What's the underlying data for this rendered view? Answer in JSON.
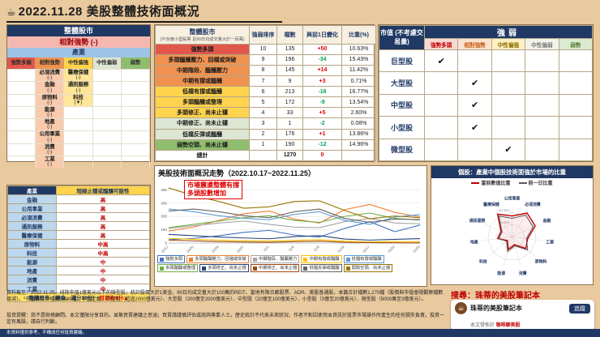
{
  "header": {
    "icon": "☕",
    "title": "2022.11.28 美股整體技術面概況"
  },
  "strength_levels": [
    {
      "label": "強勢多頭",
      "solid": "#e2574c",
      "light": "#f6b8af",
      "text": "#c00000",
      "pale": "#f8d9d4"
    },
    {
      "label": "相對強勢",
      "solid": "#f0924f",
      "light": "#f8cbad",
      "text": "#c55a11",
      "pale": "#fbe3d1"
    },
    {
      "label": "中性偏強",
      "solid": "#ffd34d",
      "light": "#ffe699",
      "text": "#8a6d00",
      "pale": "#fff0c2"
    },
    {
      "label": "中性偏弱",
      "solid": "#dde6d2",
      "light": "#e9efe0",
      "text": "#7a7a7a",
      "pale": "#f0f3ea"
    },
    {
      "label": "弱勢",
      "solid": "#8fbe6e",
      "light": "#c5deb0",
      "text": "#538135",
      "pale": "#dcead0"
    }
  ],
  "overall_panel": {
    "title": "整體股市",
    "status": "相對強勢 (-)",
    "industry_label": "產業",
    "grid_rows": 8,
    "placements": [
      {
        "name": "必須消費",
        "change": "(-)",
        "row": 0,
        "col": 1
      },
      {
        "name": "醫療保健",
        "change": "(-)",
        "row": 0,
        "col": 2
      },
      {
        "name": "金融",
        "change": "(-)",
        "row": 1,
        "col": 1
      },
      {
        "name": "通訊服務",
        "change": "(-)",
        "row": 1,
        "col": 2
      },
      {
        "name": "原物料",
        "change": "(-)",
        "row": 2,
        "col": 1
      },
      {
        "name": "科技",
        "change": "(▼)",
        "row": 2,
        "col": 2
      },
      {
        "name": "能源",
        "change": "(-)",
        "row": 3,
        "col": 1
      },
      {
        "name": "地產",
        "change": "(-)",
        "row": 4,
        "col": 1
      },
      {
        "name": "公用事業",
        "change": "(-)",
        "row": 5,
        "col": 1
      },
      {
        "name": "消費",
        "change": "(-)",
        "row": 6,
        "col": 1
      },
      {
        "name": "工業",
        "change": "(-)",
        "row": 7,
        "col": 1
      }
    ]
  },
  "summary_table": {
    "title": "整體股市",
    "subtitle": "(不含微小型股票 且90日均成交量大於一百萬)",
    "columns": [
      "強弱排序",
      "檔數",
      "與前1日變化",
      "比重(%)"
    ],
    "rows": [
      {
        "label": "強勢多頭",
        "rank": "10",
        "count": "135",
        "change": "+50",
        "weight": "10.63%",
        "tier": 0
      },
      {
        "label": "多頭醞釀壓力、回檔或突破",
        "rank": "9",
        "count": "196",
        "change": "-34",
        "weight": "15.43%",
        "tier": 1
      },
      {
        "label": "中期階段、醞釀壓力",
        "rank": "8",
        "count": "145",
        "change": "+14",
        "weight": "11.42%",
        "tier": 1
      },
      {
        "label": "中期有撐或醞釀",
        "rank": "7",
        "count": "9",
        "change": "+3",
        "weight": "0.71%",
        "tier": 1
      },
      {
        "label": "低檔有撐或醞釀",
        "rank": "6",
        "count": "213",
        "change": "-16",
        "weight": "16.77%",
        "tier": 2
      },
      {
        "label": "多頭醞釀或整理",
        "rank": "5",
        "count": "172",
        "change": "-9",
        "weight": "13.54%",
        "tier": 2
      },
      {
        "label": "多頭修正、尚未止穩",
        "rank": "4",
        "count": "33",
        "change": "+5",
        "weight": "2.60%",
        "tier": 2
      },
      {
        "label": "中期修正、尚未止穩",
        "rank": "3",
        "count": "1",
        "change": "-2",
        "weight": "0.08%",
        "tier": 3
      },
      {
        "label": "低檔反彈或醞釀",
        "rank": "2",
        "count": "176",
        "change": "+1",
        "weight": "13.86%",
        "tier": 3
      },
      {
        "label": "弱勢空頭、尚未止穩",
        "rank": "1",
        "count": "190",
        "change": "-12",
        "weight": "14.96%",
        "tier": 4
      }
    ],
    "total_label": "總計",
    "total_count": "1270",
    "total_change": "0"
  },
  "cap_matrix": {
    "row_header": "市值 (不考慮交易量)",
    "col_header": "強弱",
    "check": "✔",
    "rows": [
      {
        "label": "巨型股",
        "col": 0
      },
      {
        "label": "大型股",
        "col": 1
      },
      {
        "label": "中型股",
        "col": 1
      },
      {
        "label": "小型股",
        "col": 1
      },
      {
        "label": "微型股",
        "col": 2
      }
    ]
  },
  "trend_panel": {
    "title": "美股技術面概況走勢（2022.10.17~2022.11.25）",
    "annotation": [
      "市場震盪整體有撐",
      "多頭股數增加"
    ]
  },
  "radar_panel": {
    "title": "個股：產業中個股技術面強於市場的比重",
    "legend": [
      {
        "label": "當前數值比重",
        "color": "#c00000"
      },
      {
        "label": "前一日比重",
        "color": "#595959"
      }
    ]
  },
  "sector_table": {
    "columns": [
      "產業",
      "短線止穩或醞釀可能性"
    ],
    "rows": [
      {
        "sector": "金融",
        "value": "高"
      },
      {
        "sector": "公用事業",
        "value": "高"
      },
      {
        "sector": "必須消費",
        "value": "高"
      },
      {
        "sector": "通訊服務",
        "value": "高"
      },
      {
        "sector": "醫療保健",
        "value": "高"
      },
      {
        "sector": "原物料",
        "value": "中高"
      },
      {
        "sector": "科技",
        "value": "中高"
      },
      {
        "sector": "能源",
        "value": "中"
      },
      {
        "sector": "地產",
        "value": "中"
      },
      {
        "sector": "消費",
        "value": "中"
      },
      {
        "sector": "工業",
        "value": "中"
      }
    ],
    "summary_label": "整體股市（機會，滿分10分）",
    "summary_value": "目前約9分▲"
  },
  "chart_data": [
    {
      "type": "line",
      "title": "美股技術面概況走勢（2022.10.17~2022.11.25）",
      "x": [
        "10/17",
        "10/20",
        "10/24",
        "10/27",
        "11/1",
        "11/4",
        "11/9",
        "11/14",
        "11/17",
        "11/22",
        "11/25"
      ],
      "xlabel": "",
      "ylabel": "檔數",
      "ylim": [
        0,
        450
      ],
      "yticks": [
        0,
        100,
        200,
        300,
        400
      ],
      "grid": true,
      "legend_position": "bottom",
      "series": [
        {
          "name": "強勢多頭",
          "color": "#4472c4",
          "values": [
            25,
            35,
            55,
            80,
            95,
            60,
            45,
            110,
            160,
            85,
            135
          ]
        },
        {
          "name": "多頭醞釀壓力、回檔或突破",
          "color": "#ed7d31",
          "values": [
            90,
            120,
            170,
            220,
            240,
            180,
            150,
            250,
            290,
            230,
            196
          ]
        },
        {
          "name": "中期階段、醞釀壓力",
          "color": "#a5a5a5",
          "values": [
            110,
            130,
            150,
            165,
            140,
            120,
            115,
            160,
            185,
            150,
            145
          ]
        },
        {
          "name": "中期有撐或醞釀",
          "color": "#ffc000",
          "values": [
            35,
            28,
            22,
            18,
            15,
            20,
            25,
            14,
            8,
            12,
            9
          ]
        },
        {
          "name": "低檔有撐或醞釀",
          "color": "#5b9bd5",
          "values": [
            255,
            235,
            205,
            185,
            175,
            215,
            235,
            170,
            140,
            195,
            213
          ]
        },
        {
          "name": "多頭醞釀或整理",
          "color": "#70ad47",
          "values": [
            115,
            140,
            165,
            190,
            205,
            170,
            155,
            200,
            225,
            185,
            172
          ]
        },
        {
          "name": "多頭修正、尚未止穩",
          "color": "#264478",
          "values": [
            65,
            55,
            45,
            38,
            32,
            48,
            55,
            30,
            22,
            28,
            33
          ]
        },
        {
          "name": "中期修正、尚未止穩",
          "color": "#9e480e",
          "values": [
            22,
            16,
            11,
            8,
            6,
            10,
            14,
            6,
            3,
            2,
            1
          ]
        },
        {
          "name": "低檔反彈或醞釀",
          "color": "#636363",
          "values": [
            240,
            255,
            235,
            205,
            190,
            235,
            255,
            185,
            155,
            180,
            176
          ]
        },
        {
          "name": "弱勢空頭、尚未止穩",
          "color": "#997300",
          "values": [
            413,
            356,
            312,
            261,
            272,
            312,
            317,
            245,
            182,
            203,
            190
          ]
        }
      ]
    },
    {
      "type": "radar",
      "title": "個股：產業中個股技術面強於市場的比重",
      "categories": [
        "公用事業",
        "必須消費",
        "金融",
        "工業",
        "原物料",
        "消費",
        "能源",
        "科技",
        "地產",
        "通訊服務",
        "醫療保健"
      ],
      "max": 50,
      "rings": [
        20,
        40
      ],
      "series": [
        {
          "name": "當前數值比重",
          "color": "#c00000",
          "values": [
            34,
            46,
            42,
            26,
            30,
            14,
            22,
            10,
            24,
            20,
            44
          ]
        },
        {
          "name": "前一日比重",
          "color": "#595959",
          "values": [
            30,
            42,
            38,
            24,
            34,
            16,
            26,
            12,
            22,
            18,
            40
          ]
        }
      ]
    }
  ],
  "footer": {
    "disclaimer1": "資料截至：2022.11.25。排除市值1億美元以下的微型股；統計股價大於1美金、90日均成交量大於100萬的REIT、當地有限合夥股票、ADR、美股普通股，本篇合計檔數1,270檔（股價與市值會隨觀察檔數增減）。*市值表合計檔數5,489檔。市值定義：巨型股（超過2000億美元）、大型股（200億至2000億美元）、中型股（20億至100億美元）、小型股（3億至20億美元）、微型股（5000萬至3億美元）。",
    "disclaimer2": "投資提醒：我不是財務顧問。本文僅限分享目的，並無買賣建議之意涵；買賣請謹慎評估或諮詢專業人士。歷史統計不代表未來狀況，作者不對因使用本資訊於股票市場操作所產生的任何損失負責，投資一定有風險，請自行判斷。",
    "search_label": "搜尋：珠蒂的美股筆記本",
    "bar_text": "本資料僅供參考，不構成任何投資建議。",
    "card": {
      "name": "珠蒂的美股筆記本",
      "follow_label": "追蹤",
      "published_prefix": "本文發佈於 ",
      "publication": "咖啡聊美股"
    }
  }
}
